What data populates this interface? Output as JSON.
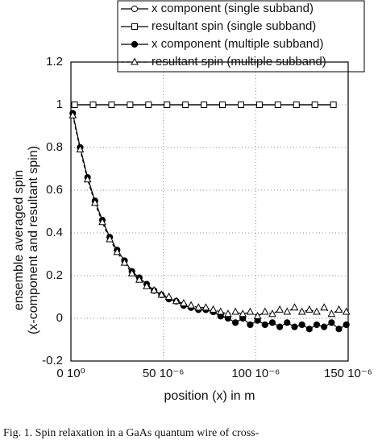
{
  "chart_data": {
    "type": "line",
    "xlabel": "position (x) in m",
    "ylabel": [
      "ensemble averaged spin",
      "(x-component and resultant spin)"
    ],
    "caption": "Fig. 1. Spin relaxation in a GaAs quantum wire of cross-",
    "xlim": [
      0,
      0.00015
    ],
    "ylim": [
      -0.2,
      1.2
    ],
    "xticks": [
      {
        "value": 0,
        "label": "0 10⁰"
      },
      {
        "value": 5e-05,
        "label": "50 10⁻⁶"
      },
      {
        "value": 0.0001,
        "label": "100 10⁻⁶"
      },
      {
        "value": 0.00015,
        "label": "150 10⁻⁶"
      }
    ],
    "yticks": [
      -0.2,
      0,
      0.2,
      0.4,
      0.6,
      0.8,
      1,
      1.2
    ],
    "grid": true,
    "legend": "top",
    "series": [
      {
        "name": "x component (single subband)",
        "color": "#000000",
        "marker": "circle",
        "filled": false,
        "dashed": false,
        "x": [
          2e-06,
          1.2e-05,
          2.2e-05,
          3.2e-05,
          4.2e-05,
          5.2e-05,
          6.2e-05,
          7.2e-05,
          8.2e-05,
          9.2e-05,
          0.000102,
          0.000112,
          0.000122,
          0.000132,
          0.000142
        ],
        "values": [
          1,
          1,
          1,
          1,
          1,
          1,
          1,
          1,
          1,
          1,
          1,
          1,
          1,
          1,
          1
        ]
      },
      {
        "name": "resultant spin (single subband)",
        "color": "#000000",
        "marker": "square",
        "filled": false,
        "dashed": false,
        "x": [
          2e-06,
          1.2e-05,
          2.2e-05,
          3.2e-05,
          4.2e-05,
          5.2e-05,
          6.2e-05,
          7.2e-05,
          8.2e-05,
          9.2e-05,
          0.000102,
          0.000112,
          0.000122,
          0.000132,
          0.000142
        ],
        "values": [
          1,
          1,
          1,
          1,
          1,
          1,
          1,
          1,
          1,
          1,
          1,
          1,
          1,
          1,
          1
        ]
      },
      {
        "name": "x component (multiple subband)",
        "color": "#000000",
        "marker": "circle",
        "filled": true,
        "dashed": false,
        "x": [
          1e-06,
          5e-06,
          9e-06,
          1.3e-05,
          1.7e-05,
          2.1e-05,
          2.5e-05,
          2.9e-05,
          3.3e-05,
          3.7e-05,
          4.1e-05,
          4.5e-05,
          4.9e-05,
          5.3e-05,
          5.7e-05,
          6.1e-05,
          6.5e-05,
          6.9e-05,
          7.3e-05,
          7.7e-05,
          8.1e-05,
          8.5e-05,
          8.9e-05,
          9.3e-05,
          9.7e-05,
          0.000101,
          0.000105,
          0.000109,
          0.000113,
          0.000117,
          0.000121,
          0.000125,
          0.000129,
          0.000133,
          0.000137,
          0.000141,
          0.000145,
          0.000149
        ],
        "values": [
          0.96,
          0.8,
          0.66,
          0.55,
          0.46,
          0.38,
          0.32,
          0.27,
          0.22,
          0.19,
          0.16,
          0.13,
          0.11,
          0.09,
          0.08,
          0.06,
          0.05,
          0.04,
          0.04,
          0.03,
          0.01,
          0,
          -0.02,
          0,
          -0.03,
          -0.01,
          -0.03,
          -0.02,
          -0.04,
          -0.02,
          -0.04,
          -0.03,
          -0.05,
          -0.03,
          -0.04,
          -0.02,
          -0.05,
          -0.03
        ]
      },
      {
        "name": "resultant spin (multiple subband)",
        "color": "#000000",
        "marker": "triangle",
        "filled": false,
        "dashed": true,
        "x": [
          1e-06,
          5e-06,
          9e-06,
          1.3e-05,
          1.7e-05,
          2.1e-05,
          2.5e-05,
          2.9e-05,
          3.3e-05,
          3.7e-05,
          4.1e-05,
          4.5e-05,
          4.9e-05,
          5.3e-05,
          5.7e-05,
          6.1e-05,
          6.5e-05,
          6.9e-05,
          7.3e-05,
          7.7e-05,
          8.1e-05,
          8.5e-05,
          8.9e-05,
          9.3e-05,
          9.7e-05,
          0.000101,
          0.000105,
          0.000109,
          0.000113,
          0.000117,
          0.000121,
          0.000125,
          0.000129,
          0.000133,
          0.000137,
          0.000141,
          0.000145,
          0.000149
        ],
        "values": [
          0.95,
          0.79,
          0.65,
          0.54,
          0.45,
          0.37,
          0.31,
          0.26,
          0.21,
          0.18,
          0.15,
          0.13,
          0.11,
          0.1,
          0.08,
          0.07,
          0.06,
          0.05,
          0.05,
          0.04,
          0.03,
          0.02,
          0.03,
          0.02,
          0.03,
          0.01,
          0.03,
          0.02,
          0.04,
          0.03,
          0.05,
          0.03,
          0.04,
          0.03,
          0.05,
          0.02,
          0.04,
          0.03
        ]
      }
    ]
  }
}
